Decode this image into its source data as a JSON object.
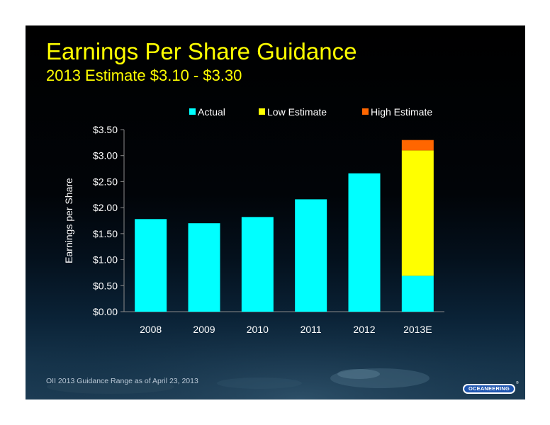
{
  "slide": {
    "title": "Earnings Per Share Guidance",
    "subtitle": "2013 Estimate $3.10 - $3.30",
    "footnote": "OII 2013 Guidance Range as of April 23, 2013",
    "logo": "OCEANEERING",
    "logo_mark": "®"
  },
  "colors": {
    "title": "#ffff00",
    "actual": "#00ffff",
    "low_estimate": "#ffff00",
    "high_estimate": "#ff6600"
  },
  "chart_data": {
    "type": "bar",
    "stacked": true,
    "categories": [
      "2008",
      "2009",
      "2010",
      "2011",
      "2012",
      "2013E"
    ],
    "series": [
      {
        "name": "Actual",
        "values": [
          1.78,
          1.7,
          1.82,
          2.16,
          2.66,
          0.69
        ]
      },
      {
        "name": "Low Estimate",
        "values": [
          0,
          0,
          0,
          0,
          0,
          2.41
        ]
      },
      {
        "name": "High Estimate",
        "values": [
          0,
          0,
          0,
          0,
          0,
          0.2
        ]
      }
    ],
    "ylabel": "Earnings per Share",
    "ylim": [
      0,
      3.5
    ],
    "yticks": [
      0,
      0.5,
      1.0,
      1.5,
      2.0,
      2.5,
      3.0,
      3.5
    ],
    "ytick_labels": [
      "$0.00",
      "$0.50",
      "$1.00",
      "$1.50",
      "$2.00",
      "$2.50",
      "$3.00",
      "$3.50"
    ],
    "legend_position": "top",
    "grid": false
  }
}
